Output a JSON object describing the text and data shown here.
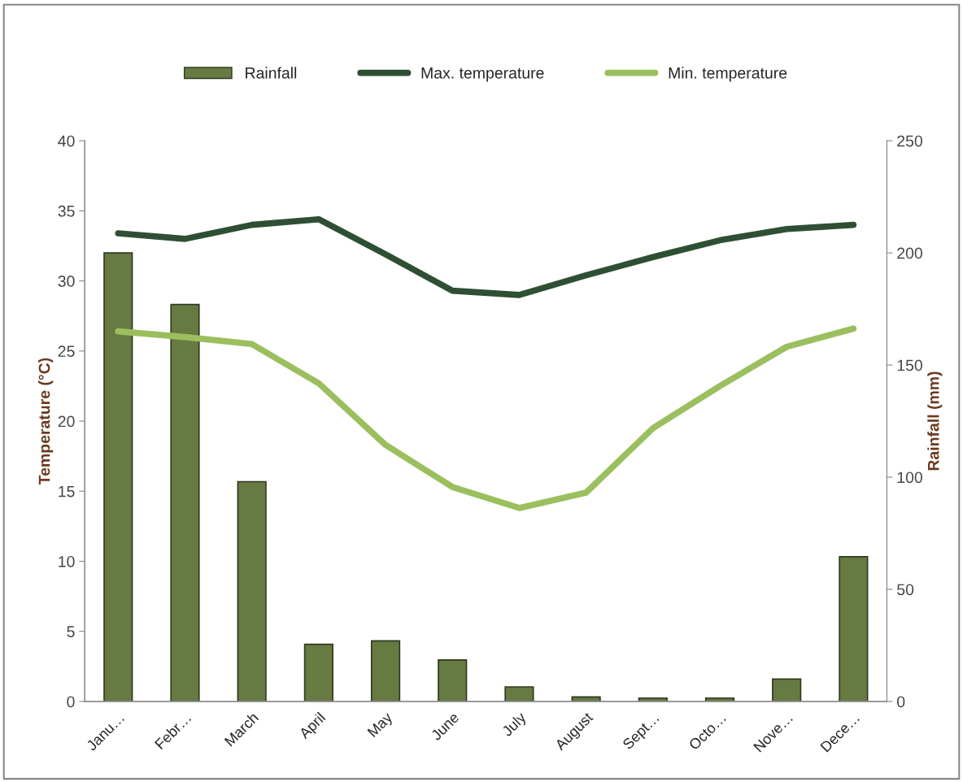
{
  "chart_data": {
    "type": "bar",
    "categories": [
      "Janu…",
      "Febr…",
      "March",
      "April",
      "May",
      "June",
      "July",
      "August",
      "Sept…",
      "Octo…",
      "Nove…",
      "Dece…"
    ],
    "series": [
      {
        "name": "Rainfall",
        "axis": "y2",
        "color": "#667a42",
        "values": [
          200,
          177,
          98,
          25.5,
          27,
          18.5,
          6.5,
          2,
          1.5,
          1.5,
          10,
          64.5
        ]
      },
      {
        "name": "Max. temperature",
        "type": "line",
        "color": "#2f4f34",
        "values": [
          33.4,
          33.0,
          34.0,
          34.4,
          31.9,
          29.3,
          29.0,
          30.4,
          31.7,
          32.9,
          33.7,
          34.0
        ]
      },
      {
        "name": "Min. temperature",
        "type": "line",
        "color": "#9bbf5e",
        "values": [
          26.4,
          26.0,
          25.5,
          22.7,
          18.3,
          15.3,
          13.8,
          14.9,
          19.5,
          22.5,
          25.3,
          26.6
        ]
      }
    ],
    "ylabel": "Temperature (°C)",
    "y2label": "Rainfall (mm)",
    "ylim": [
      0,
      40
    ],
    "yticks": [
      0,
      5,
      10,
      15,
      20,
      25,
      30,
      35,
      40
    ],
    "y2lim": [
      0,
      250
    ],
    "y2ticks": [
      0,
      50,
      100,
      150,
      200,
      250
    ],
    "grid": false,
    "legend": "top",
    "line_style": "solid",
    "marker": "none"
  }
}
